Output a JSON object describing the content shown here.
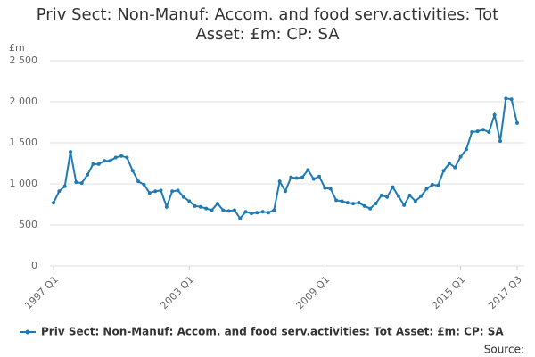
{
  "chart_data": {
    "type": "line",
    "title": "Priv Sect: Non-Manuf: Accom. and food serv.activities: Tot Asset: £m: CP: SA",
    "y_label": "£m",
    "source": "Source:",
    "categories": [
      "1997 Q1",
      null,
      null,
      null,
      null,
      null,
      null,
      null,
      null,
      null,
      null,
      null,
      null,
      null,
      null,
      null,
      null,
      null,
      null,
      null,
      null,
      null,
      null,
      null,
      "2003 Q1",
      null,
      null,
      null,
      null,
      null,
      null,
      null,
      null,
      null,
      null,
      null,
      null,
      null,
      null,
      null,
      null,
      null,
      null,
      null,
      null,
      null,
      null,
      null,
      "2009 Q1",
      null,
      null,
      null,
      null,
      null,
      null,
      null,
      null,
      null,
      null,
      null,
      null,
      null,
      null,
      null,
      null,
      null,
      null,
      null,
      null,
      null,
      null,
      null,
      "2015 Q1",
      null,
      null,
      null,
      null,
      null,
      null,
      null,
      null,
      null,
      "2017 Q3"
    ],
    "series": [
      {
        "name": "Priv Sect: Non-Manuf: Accom. and food serv.activities: Tot Asset: £m: CP: SA",
        "color": "#1f7bb6",
        "values": [
          770,
          910,
          970,
          1390,
          1020,
          1010,
          1110,
          1240,
          1240,
          1280,
          1280,
          1320,
          1340,
          1320,
          1160,
          1030,
          990,
          890,
          910,
          920,
          720,
          910,
          920,
          840,
          790,
          730,
          720,
          700,
          680,
          760,
          680,
          670,
          680,
          580,
          660,
          640,
          650,
          660,
          650,
          680,
          1030,
          910,
          1080,
          1070,
          1080,
          1170,
          1060,
          1090,
          950,
          940,
          800,
          790,
          770,
          760,
          770,
          730,
          700,
          760,
          860,
          840,
          960,
          850,
          740,
          860,
          790,
          850,
          940,
          990,
          980,
          1160,
          1250,
          1200,
          1330,
          1420,
          1630,
          1640,
          1660,
          1630,
          1840,
          1520,
          2040,
          2030,
          1740
        ]
      }
    ],
    "ylim": [
      0,
      2500
    ],
    "yticks": [
      0,
      500,
      {
        "value": 1000,
        "label": "1 000"
      },
      {
        "value": 1500,
        "label": "1 500"
      },
      {
        "value": 2000,
        "label": "2 000"
      },
      {
        "value": 2500,
        "label": "2 500"
      }
    ],
    "grid": true
  }
}
